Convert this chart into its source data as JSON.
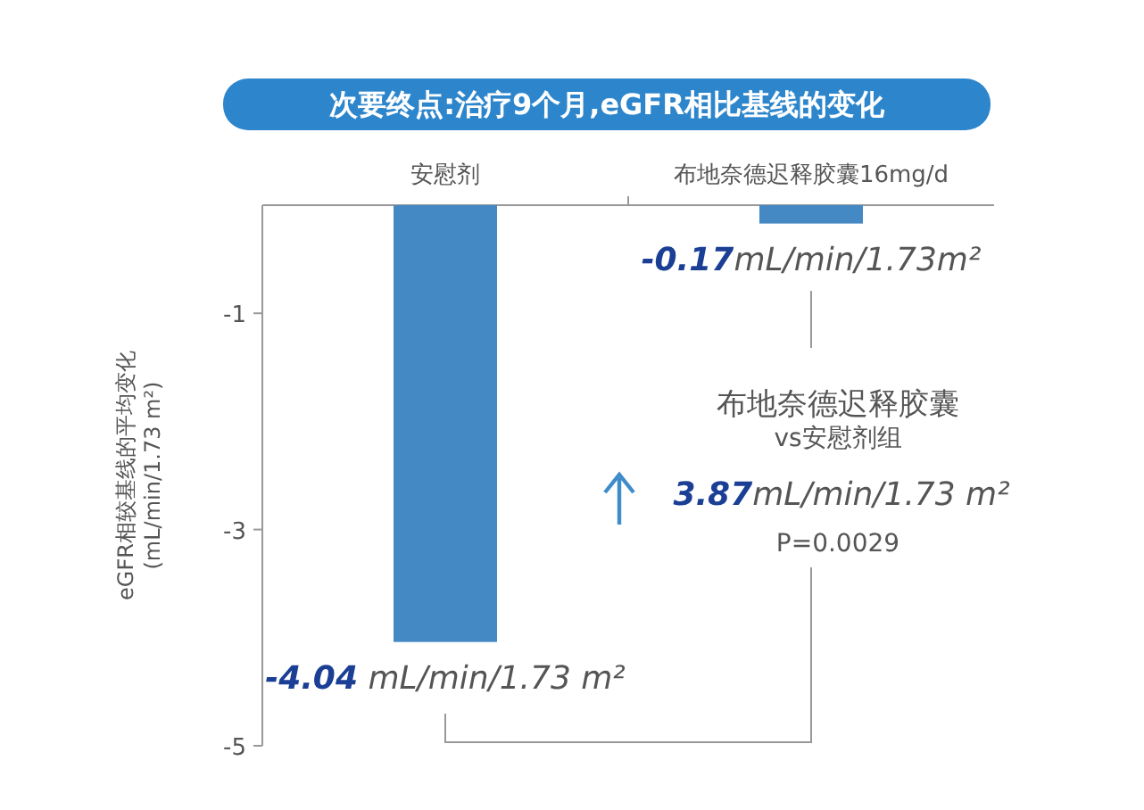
{
  "chart_data": {
    "type": "bar",
    "title": "次要终点:治疗9个月,eGFR相比基线的变化",
    "categories": [
      "安慰剂",
      "布地奈德迟释胶囊16mg/d"
    ],
    "values": [
      -4.04,
      -0.17
    ],
    "color": "#4589c4",
    "value_labels": [
      "-4.04 mL/min/1.73 m²",
      "-0.17mL/min/1.73m²"
    ],
    "ylabel": "eGFR相较基线的平均变化\n(mL/min/1.73 m²)",
    "ylim": [
      -5,
      0
    ],
    "yticks": [
      -1,
      -3,
      -5
    ],
    "grid": false,
    "annotations": [
      "布地奈德迟释胶囊",
      "vs安慰剂组",
      "3.87mL/min/1.73 m²",
      "P=0.0029"
    ]
  }
}
